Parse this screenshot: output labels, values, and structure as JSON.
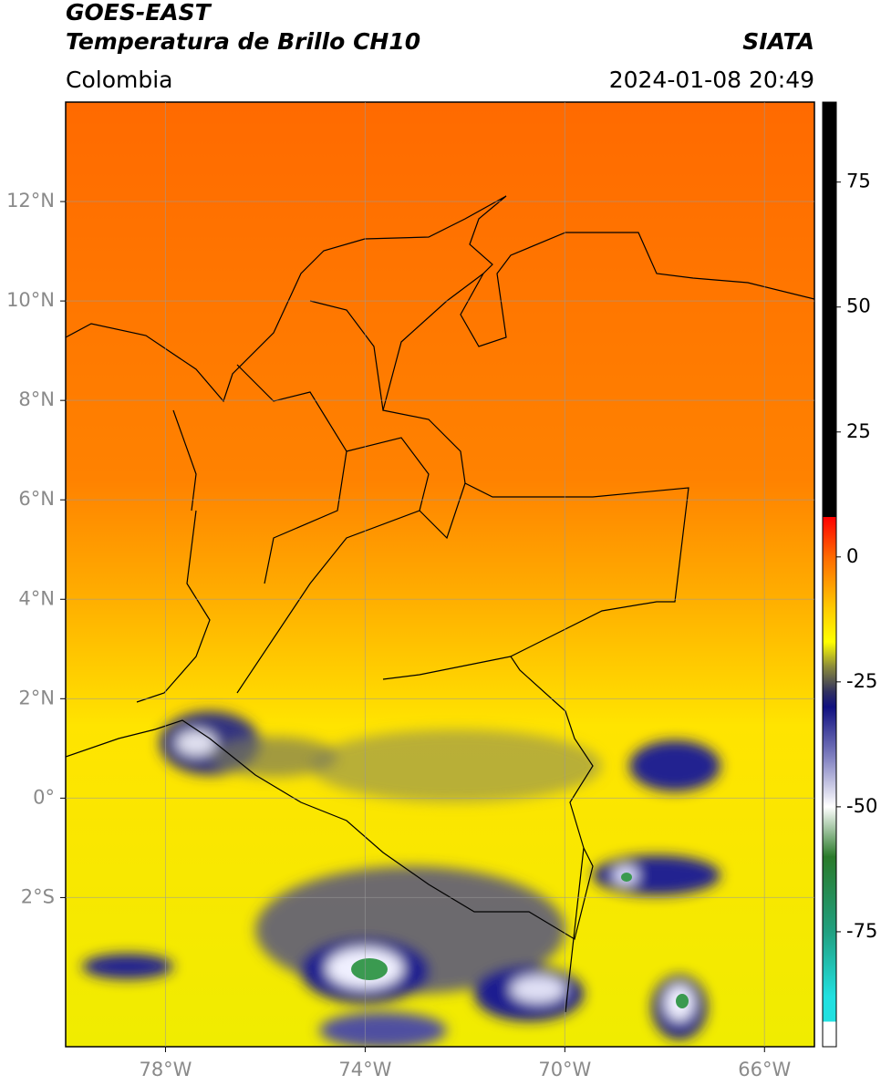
{
  "chart_data": {
    "type": "map",
    "title": "GOES-EAST",
    "subtitle": "Temperatura de Brillo CH10",
    "source": "SIATA",
    "region": "Colombia",
    "datetime": "2024-01-08 20:49",
    "xlim": [
      -80,
      -65
    ],
    "ylim": [
      -5,
      14
    ],
    "xticks": [
      {
        "value": -78,
        "label": "78°W"
      },
      {
        "value": -74,
        "label": "74°W"
      },
      {
        "value": -70,
        "label": "70°W"
      },
      {
        "value": -66,
        "label": "66°W"
      }
    ],
    "yticks": [
      {
        "value": 12,
        "label": "12°N"
      },
      {
        "value": 10,
        "label": "10°N"
      },
      {
        "value": 8,
        "label": "8°N"
      },
      {
        "value": 6,
        "label": "6°N"
      },
      {
        "value": 4,
        "label": "4°N"
      },
      {
        "value": 2,
        "label": "2°N"
      },
      {
        "value": 0,
        "label": "0°"
      },
      {
        "value": -2,
        "label": "2°S"
      }
    ],
    "grid": true,
    "colorbar": {
      "lim": [
        -98,
        91
      ],
      "ticks": [
        75,
        50,
        25,
        0,
        -25,
        -50,
        -75
      ],
      "stops": [
        {
          "value": 91,
          "color": "#000000"
        },
        {
          "value": 8,
          "color": "#000000"
        },
        {
          "value": 8,
          "color": "#ff0000"
        },
        {
          "value": 0,
          "color": "#ff6a00"
        },
        {
          "value": -10,
          "color": "#ffc800"
        },
        {
          "value": -17,
          "color": "#ffff00"
        },
        {
          "value": -22,
          "color": "#8a8a3a"
        },
        {
          "value": -27,
          "color": "#303060"
        },
        {
          "value": -30,
          "color": "#101080"
        },
        {
          "value": -40,
          "color": "#8080c0"
        },
        {
          "value": -50,
          "color": "#ffffff"
        },
        {
          "value": -60,
          "color": "#2a7a2a"
        },
        {
          "value": -75,
          "color": "#20a080"
        },
        {
          "value": -88,
          "color": "#20e0e0"
        },
        {
          "value": -93,
          "color": "#20e0e0"
        },
        {
          "value": -93,
          "color": "#ffffff"
        },
        {
          "value": -98,
          "color": "#ffffff"
        }
      ]
    }
  }
}
